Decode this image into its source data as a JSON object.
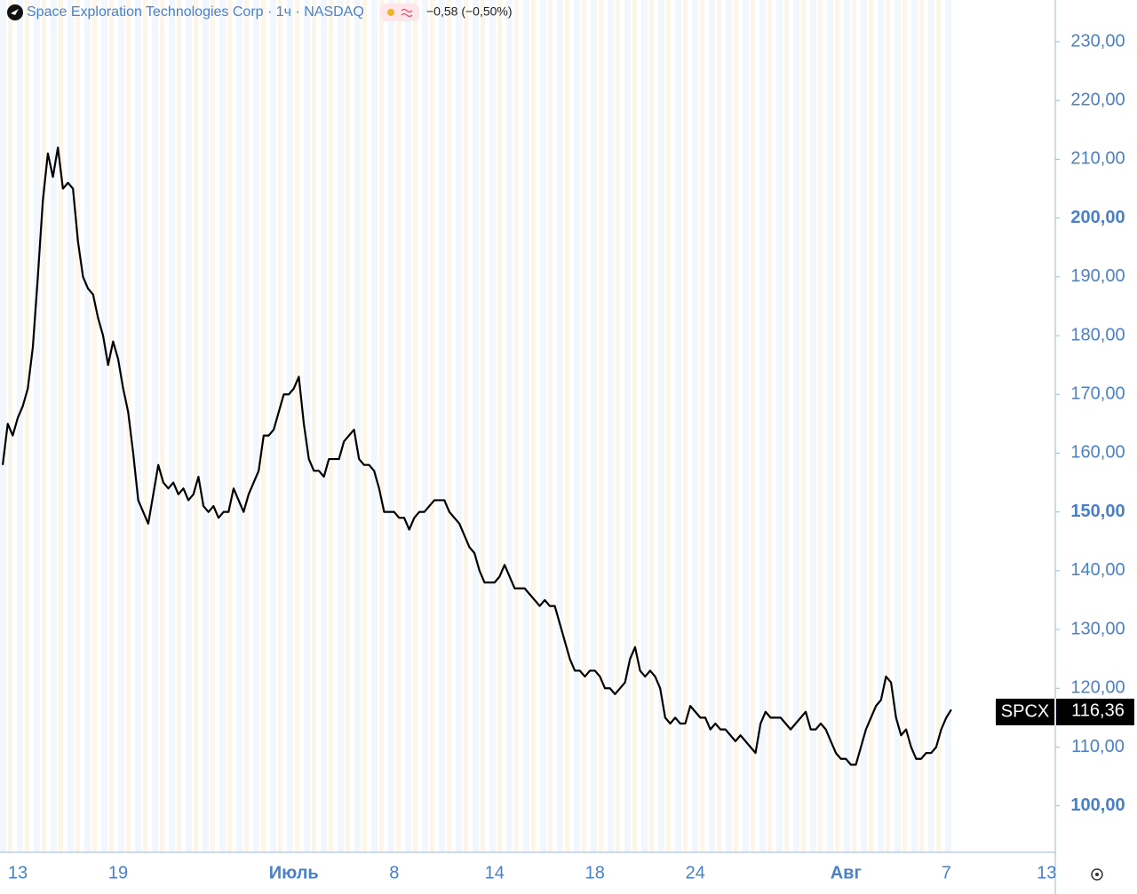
{
  "chart_data": {
    "type": "line",
    "title": "Space Exploration Technologies Corp",
    "interval": "1ч",
    "exchange": "NASDAQ",
    "change": "−0,58 (−0,50%)",
    "categories": [
      null,
      null,
      null,
      "13",
      null,
      null,
      null,
      null,
      null,
      null,
      null,
      null,
      null,
      null,
      null,
      null,
      null,
      null,
      null,
      null,
      null,
      null,
      null,
      "19",
      null,
      null,
      null,
      null,
      null,
      null,
      null,
      null,
      null,
      null,
      null,
      null,
      null,
      null,
      null,
      null,
      null,
      null,
      null,
      null,
      null,
      null,
      null,
      null,
      null,
      null,
      null,
      null,
      null,
      null,
      null,
      null,
      null,
      null,
      "Июль",
      null,
      null,
      null,
      null,
      null,
      null,
      null,
      null,
      null,
      null,
      null,
      null,
      null,
      null,
      null,
      null,
      null,
      null,
      null,
      "8",
      null,
      null,
      null,
      null,
      null,
      null,
      null,
      null,
      null,
      null,
      null,
      null,
      null,
      null,
      null,
      null,
      null,
      null,
      null,
      "14",
      null,
      null,
      null,
      null,
      null,
      null,
      null,
      null,
      null,
      null,
      null,
      null,
      null,
      null,
      null,
      null,
      null,
      null,
      null,
      "18",
      null,
      null,
      null,
      null,
      null,
      null,
      null,
      null,
      null,
      null,
      null,
      null,
      null,
      null,
      null,
      null,
      null,
      null,
      null,
      "24",
      null,
      null,
      null,
      null,
      null,
      null,
      null,
      null,
      null,
      null,
      null,
      null,
      null,
      null,
      null,
      null,
      null,
      null,
      null,
      null,
      null,
      null,
      null,
      null,
      null,
      null,
      null,
      null,
      null,
      "Авг",
      null,
      null,
      null,
      null,
      null,
      null,
      null,
      null,
      null,
      null,
      null,
      null,
      null,
      null,
      null,
      null,
      null,
      null,
      null,
      "7",
      null,
      null,
      null,
      null,
      null,
      null,
      null,
      null,
      null,
      null,
      null,
      null,
      null,
      null,
      null,
      null,
      null,
      null,
      null,
      "13"
    ],
    "series": [
      {
        "name": "SPCX",
        "color": "#000000",
        "values": [
          158,
          165,
          163,
          166,
          168,
          171,
          178,
          190,
          203,
          211,
          207,
          212,
          205,
          206,
          205,
          196,
          190,
          188,
          187,
          183,
          180,
          175,
          179,
          176,
          171,
          167,
          160,
          152,
          150,
          148,
          153,
          158,
          155,
          154,
          155,
          153,
          154,
          152,
          153,
          156,
          151,
          150,
          151,
          149,
          150,
          150,
          154,
          152,
          150,
          153,
          155,
          157,
          163,
          163,
          164,
          167,
          170,
          170,
          171,
          173,
          165,
          159,
          157,
          157,
          156,
          159,
          159,
          159,
          162,
          163,
          164,
          159,
          158,
          158,
          157,
          154,
          150,
          150,
          150,
          149,
          149,
          147,
          149,
          150,
          150,
          151,
          152,
          152,
          152,
          150,
          149,
          148,
          146,
          144,
          143,
          140,
          138,
          138,
          138,
          139,
          141,
          139,
          137,
          137,
          137,
          136,
          135,
          134,
          135,
          134,
          134,
          131,
          128,
          125,
          123,
          123,
          122,
          123,
          123,
          122,
          120,
          120,
          119,
          120,
          121,
          125,
          127,
          123,
          122,
          123,
          122,
          120,
          115,
          114,
          115,
          114,
          114,
          117,
          116,
          115,
          115,
          113,
          114,
          113,
          113,
          112,
          111,
          112,
          111,
          110,
          109,
          114,
          116,
          115,
          115,
          115,
          114,
          113,
          114,
          115,
          116,
          113,
          113,
          114,
          113,
          111,
          109,
          108,
          108,
          107,
          107,
          110,
          113,
          115,
          117,
          118,
          122,
          121,
          115,
          112,
          113,
          110,
          108,
          108,
          109,
          109,
          110,
          113,
          115,
          116.36,
          null,
          null,
          null,
          null,
          null,
          null,
          null,
          null,
          null,
          null,
          null,
          null,
          null,
          null,
          null,
          null,
          null,
          null,
          null
        ],
        "last_label": "116,36"
      }
    ],
    "ylim": [
      92.1,
      237.1
    ],
    "yticks": [
      {
        "value": 100,
        "label": "100,00"
      },
      {
        "value": 110,
        "label": "110,00"
      },
      {
        "value": 120,
        "label": "120,00"
      },
      {
        "value": 130,
        "label": "130,00"
      },
      {
        "value": 140,
        "label": "140,00"
      },
      {
        "value": 150,
        "label": "150,00"
      },
      {
        "value": 160,
        "label": "160,00"
      },
      {
        "value": 170,
        "label": "170,00"
      },
      {
        "value": 180,
        "label": "180,00"
      },
      {
        "value": 190,
        "label": "190,00"
      },
      {
        "value": 200,
        "label": "200,00"
      },
      {
        "value": 210,
        "label": "210,00"
      },
      {
        "value": 220,
        "label": "220,00"
      },
      {
        "value": 230,
        "label": "230,00"
      }
    ]
  }
}
